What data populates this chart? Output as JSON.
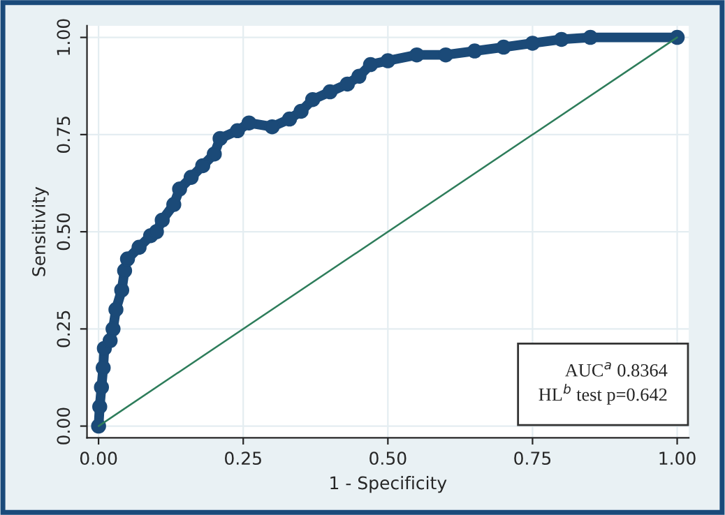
{
  "chart_data": {
    "type": "line",
    "xlabel": "1 - Specificity",
    "ylabel": "Sensitivity",
    "xlim": [
      -0.02,
      1.02
    ],
    "ylim": [
      -0.03,
      1.03
    ],
    "xticks": [
      {
        "value": 0,
        "label": "0.00"
      },
      {
        "value": 0.25,
        "label": "0.25"
      },
      {
        "value": 0.5,
        "label": "0.50"
      },
      {
        "value": 0.75,
        "label": "0.75"
      },
      {
        "value": 1,
        "label": "1.00"
      }
    ],
    "yticks": [
      {
        "value": 0,
        "label": "0.00"
      },
      {
        "value": 0.25,
        "label": "0.25"
      },
      {
        "value": 0.5,
        "label": "0.50"
      },
      {
        "value": 0.75,
        "label": "0.75"
      },
      {
        "value": 1,
        "label": "1.00"
      }
    ],
    "grid": true,
    "legend": false,
    "series": [
      {
        "color": "#1b4a78",
        "marker": "circle",
        "x": [
          0,
          0.002,
          0.005,
          0.008,
          0.01,
          0.02,
          0.025,
          0.03,
          0.04,
          0.045,
          0.05,
          0.07,
          0.09,
          0.1,
          0.11,
          0.13,
          0.14,
          0.16,
          0.18,
          0.2,
          0.21,
          0.24,
          0.26,
          0.3,
          0.33,
          0.35,
          0.37,
          0.4,
          0.43,
          0.45,
          0.47,
          0.5,
          0.55,
          0.6,
          0.65,
          0.7,
          0.75,
          0.8,
          0.85,
          1
        ],
        "values": [
          0,
          0.05,
          0.1,
          0.15,
          0.2,
          0.22,
          0.25,
          0.3,
          0.35,
          0.4,
          0.43,
          0.46,
          0.49,
          0.5,
          0.53,
          0.57,
          0.61,
          0.64,
          0.67,
          0.7,
          0.74,
          0.76,
          0.78,
          0.77,
          0.79,
          0.81,
          0.84,
          0.86,
          0.88,
          0.9,
          0.93,
          0.94,
          0.955,
          0.955,
          0.965,
          0.975,
          0.985,
          0.995,
          1,
          1
        ]
      },
      {
        "color": "#2e7d5b",
        "marker": "none",
        "x": [
          0,
          1
        ],
        "values": [
          0,
          1
        ]
      }
    ],
    "annotations": [
      "AUC$^{a}$ 0.8364\nHL$^{b}$ test p=0.642"
    ]
  }
}
